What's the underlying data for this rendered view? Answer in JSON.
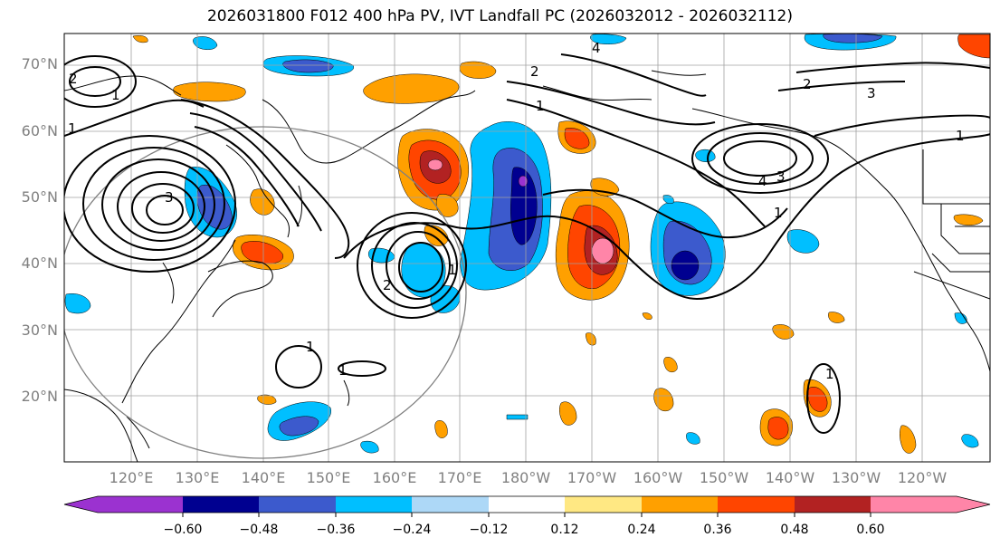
{
  "title": "2026031800 F012 400 hPa PV, IVT Landfall PC (2026032012 - 2026032112)",
  "lat_labels": [
    "70°N",
    "60°N",
    "50°N",
    "40°N",
    "30°N",
    "20°N"
  ],
  "lon_labels": [
    "120°E",
    "130°E",
    "140°E",
    "150°E",
    "160°E",
    "170°E",
    "180°W",
    "170°W",
    "160°W",
    "150°W",
    "140°W",
    "130°W",
    "120°W"
  ],
  "colorbar": {
    "tick_labels": [
      "−0.60",
      "−0.48",
      "−0.36",
      "−0.24",
      "−0.12",
      "0.12",
      "0.24",
      "0.36",
      "0.48",
      "0.60"
    ],
    "bins": [
      {
        "lo": "< −0.60",
        "color": "#9b32d0"
      },
      {
        "lo": "−0.60",
        "color": "#000090"
      },
      {
        "lo": "−0.48",
        "color": "#3c5acd"
      },
      {
        "lo": "−0.36",
        "color": "#00bfff"
      },
      {
        "lo": "−0.24",
        "color": "#add8f7"
      },
      {
        "lo": "−0.12",
        "color": "#ffffff"
      },
      {
        "lo": "0.12",
        "color": "#ffe883"
      },
      {
        "lo": "0.24",
        "color": "#ffa000"
      },
      {
        "lo": "0.36",
        "color": "#ff4500"
      },
      {
        "lo": "0.48",
        "color": "#b22222"
      },
      {
        "lo": "> 0.60",
        "color": "#ff85a8"
      }
    ]
  },
  "contour_labels": [
    "1",
    "2",
    "3",
    "4",
    "2",
    "1",
    "3",
    "2",
    "1",
    "4",
    "3",
    "1",
    "1",
    "2",
    "1",
    "1",
    "1",
    "1"
  ]
}
